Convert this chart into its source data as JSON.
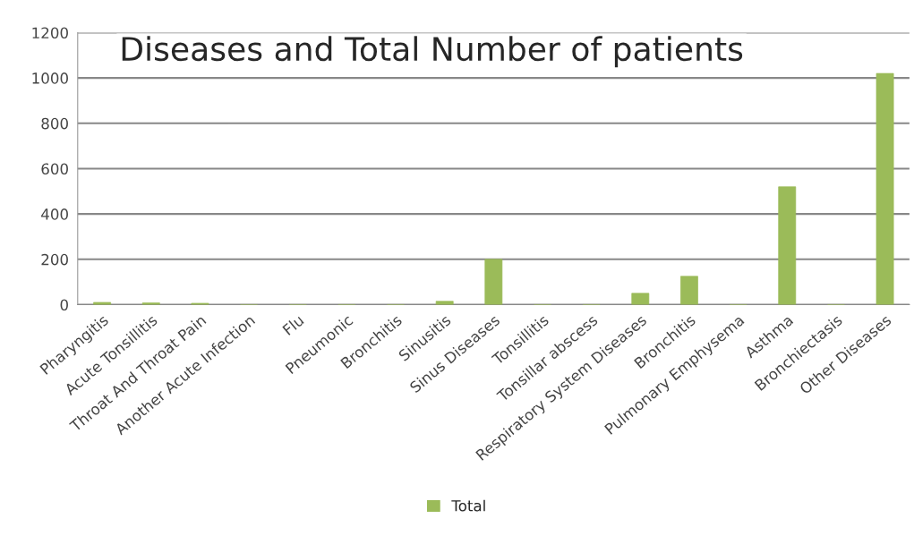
{
  "chart_data": {
    "type": "bar",
    "title": "Diseases and Total Number of patients",
    "categories": [
      "Pharyngitis",
      "Acute Tonsillitis",
      "Throat And Throat Pain",
      "Another Acute Infection",
      "Flu",
      "Pneumonic",
      "Bronchitis",
      "Sinusitis",
      "Sinus Diseases",
      "Tonsillitis",
      "Tonsillar abscess",
      "Respiratory System Diseases",
      "Bronchitis",
      "Pulmonary Emphysema",
      "Asthma",
      "Bronchiectasis",
      "Other Diseases"
    ],
    "series": [
      {
        "name": "Total",
        "color": "#9bbb59",
        "values": [
          10,
          8,
          6,
          0,
          0,
          0,
          0,
          15,
          200,
          0,
          0,
          50,
          125,
          0,
          520,
          0,
          1020
        ]
      }
    ],
    "ylim": [
      0,
      1200
    ],
    "yticks": [
      0,
      200,
      400,
      600,
      800,
      1000,
      1200
    ],
    "grid": "y",
    "legend": "bottom"
  }
}
